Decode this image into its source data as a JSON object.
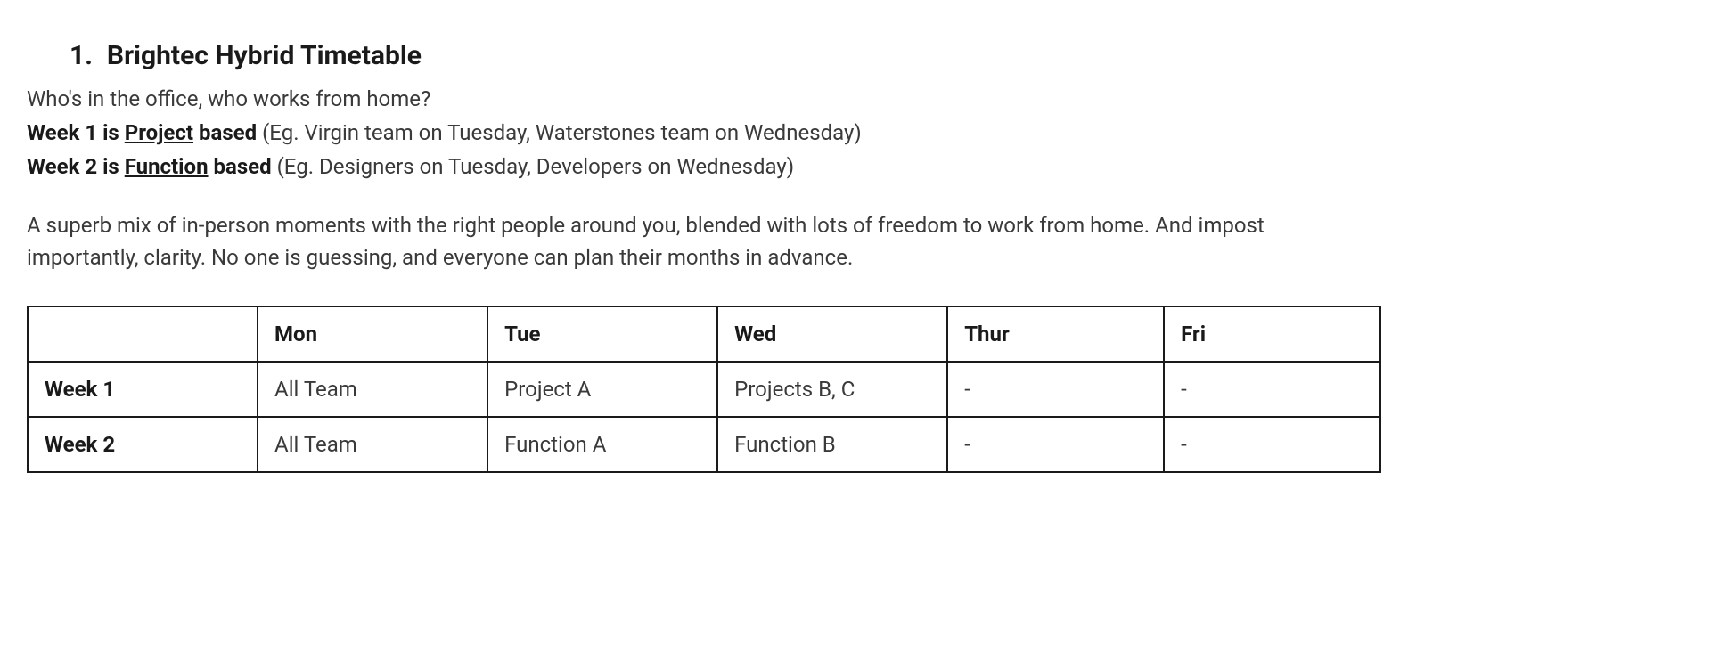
{
  "heading": {
    "number": "1.",
    "title": "Brightec Hybrid Timetable"
  },
  "intro": "Who's in the office, who works from home?",
  "lines": {
    "week1": {
      "prefix": "Week 1 is ",
      "key": "Project",
      "mid": " based",
      "rest": " (Eg. Virgin team on Tuesday, Waterstones team on Wednesday)"
    },
    "week2": {
      "prefix": "Week 2 is ",
      "key": "Function",
      "mid": " based",
      "rest": " (Eg. Designers on Tuesday, Developers on Wednesday)"
    }
  },
  "description": "A superb mix of in-person moments with the right people around you, blended with lots of freedom to work from home. And impost importantly, clarity. No one is guessing, and everyone can plan their months in advance.",
  "table": {
    "type": "table",
    "background_color": "#ffffff",
    "border_color": "#1a1a1a",
    "header_fontweight": 700,
    "cell_fontsize": 24,
    "columns": [
      "",
      "Mon",
      "Tue",
      "Wed",
      "Thur",
      "Fri"
    ],
    "column_widths_pct": [
      17,
      17,
      17,
      17,
      16,
      16
    ],
    "rows": [
      {
        "label": "Week 1",
        "cells": [
          "All Team",
          "Project A",
          "Projects B, C",
          "-",
          "-"
        ]
      },
      {
        "label": "Week 2",
        "cells": [
          "All Team",
          "Function A",
          "Function B",
          "-",
          "-"
        ]
      }
    ]
  },
  "colors": {
    "text": "#2b2b2b",
    "heading": "#1a1a1a",
    "body": "#3a3a3a",
    "border": "#1a1a1a",
    "background": "#ffffff"
  },
  "typography": {
    "heading_fontsize": 30,
    "body_fontsize": 24,
    "heading_weight": 700
  }
}
